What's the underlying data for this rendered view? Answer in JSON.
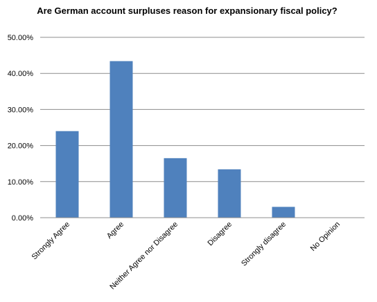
{
  "chart_data": {
    "type": "bar",
    "title": "Are German account surpluses reason for expansionary fiscal policy?",
    "categories": [
      "Strongly Agree",
      "Agree",
      "Neither Agree nor Disagree",
      "Disagree",
      "Strongly disagree",
      "No Opinion"
    ],
    "values": [
      0.24,
      0.434,
      0.165,
      0.134,
      0.03,
      0.0
    ],
    "ylim": [
      0,
      0.5
    ],
    "yticks": [
      0,
      0.1,
      0.2,
      0.3,
      0.4,
      0.5
    ],
    "ytick_labels": [
      "0.00%",
      "10.00%",
      "20.00%",
      "30.00%",
      "40.00%",
      "50.00%"
    ],
    "xlabel": "",
    "ylabel": "",
    "grid": true,
    "legend": false,
    "bar_color": "#4f81bd",
    "grid_color": "#8c8c8c"
  }
}
